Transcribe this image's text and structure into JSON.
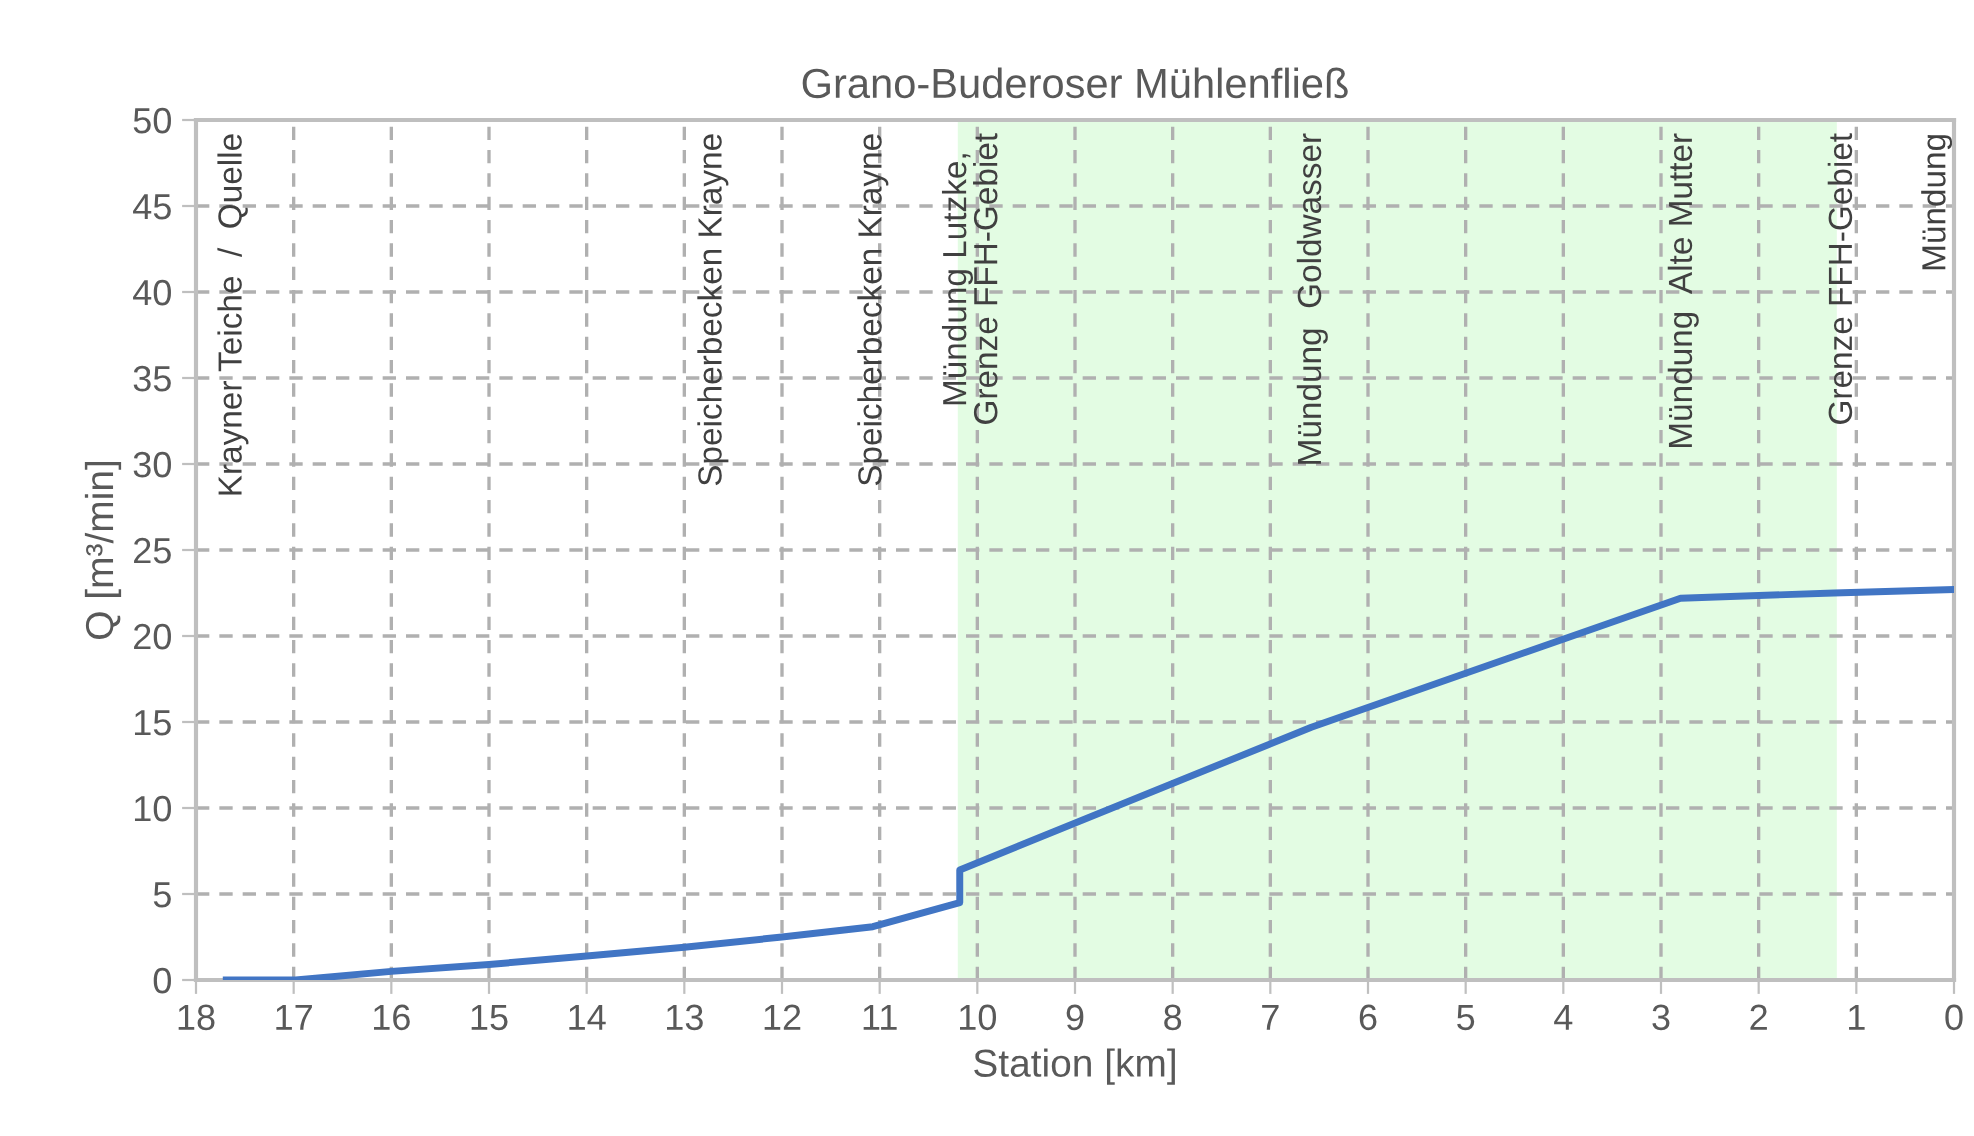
{
  "chart_data": {
    "type": "line",
    "title": "Grano-Buderoser Mühlenfließ",
    "xlabel": "Station [km]",
    "ylabel": "Q [m³/min]",
    "series": [
      {
        "color": "#4175c4",
        "x": [
          17.69,
          16.98,
          16,
          15,
          14,
          13,
          12,
          11.07,
          10.18,
          10.18,
          6.58,
          2.8,
          1.23,
          0
        ],
        "values": [
          0,
          0,
          0.5,
          0.9,
          1.4,
          1.9,
          2.5,
          3.1,
          4.5,
          6.4,
          14.7,
          22.2,
          22.5,
          22.7
        ]
      }
    ],
    "xlim": [
      18,
      0
    ],
    "xticks": [
      18,
      17,
      16,
      15,
      14,
      13,
      12,
      11,
      10,
      9,
      8,
      7,
      6,
      5,
      4,
      3,
      2,
      1,
      0
    ],
    "ylim": [
      0,
      50
    ],
    "yticks": [
      0,
      5,
      10,
      15,
      20,
      25,
      30,
      35,
      40,
      45,
      50
    ],
    "grid": true,
    "line_style": "solid",
    "marker": "none",
    "bands": [
      {
        "axis": "x",
        "from": 10.2,
        "to": 1.2,
        "color": "#e3fce3"
      }
    ],
    "annotations": [
      "Krayner Teiche  /  Quelle",
      "Speicherbecken Krayne",
      "Speicherbecken Krayne",
      "Mündung Lutzke,\nGrenze FFH-Gebiet",
      "Mündung  Goldwasser",
      "Mündung  Alte Mutter",
      "Grenze FFH-Gebiet",
      "Mündung"
    ]
  }
}
